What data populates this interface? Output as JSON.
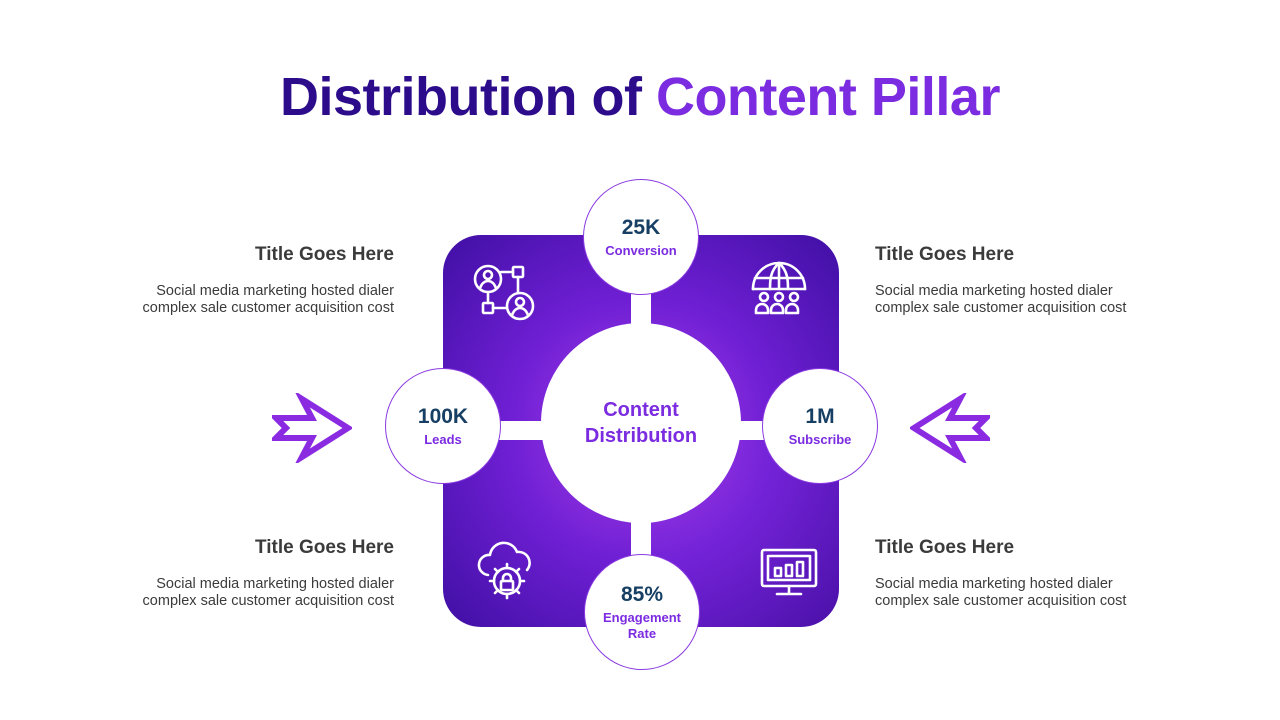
{
  "title": {
    "part1": "Distribution of ",
    "part2": "Content Pillar"
  },
  "center": {
    "label": "Content Distribution"
  },
  "metrics": [
    {
      "value": "25K",
      "label": "Conversion"
    },
    {
      "value": "100K",
      "label": "Leads"
    },
    {
      "value": "1M",
      "label": "Subscribe"
    },
    {
      "value": "85%",
      "label": "Engagement Rate"
    }
  ],
  "blocks": [
    {
      "title": "Title Goes Here",
      "line1": "Social media marketing hosted dialer",
      "line2": "complex sale customer acquisition cost"
    },
    {
      "title": "Title Goes Here",
      "line1": "Social media marketing hosted dialer",
      "line2": "complex sale customer acquisition cost"
    },
    {
      "title": "Title Goes Here",
      "line1": "Social media marketing hosted dialer",
      "line2": "complex sale customer acquisition cost"
    },
    {
      "title": "Title Goes Here",
      "line1": "Social media marketing hosted dialer",
      "line2": "complex sale customer acquisition cost"
    }
  ],
  "icons": {
    "top_left": "network-users-icon",
    "top_right": "globe-group-icon",
    "bottom_left": "cloud-lock-settings-icon",
    "bottom_right": "monitor-chart-icon",
    "left_arrow": "arrow-right-icon",
    "right_arrow": "arrow-left-icon"
  },
  "colors": {
    "title_dark": "#2d0c8c",
    "title_accent": "#7b2be0",
    "metric_value": "#163f63",
    "quad_purple": "#7d22da"
  }
}
